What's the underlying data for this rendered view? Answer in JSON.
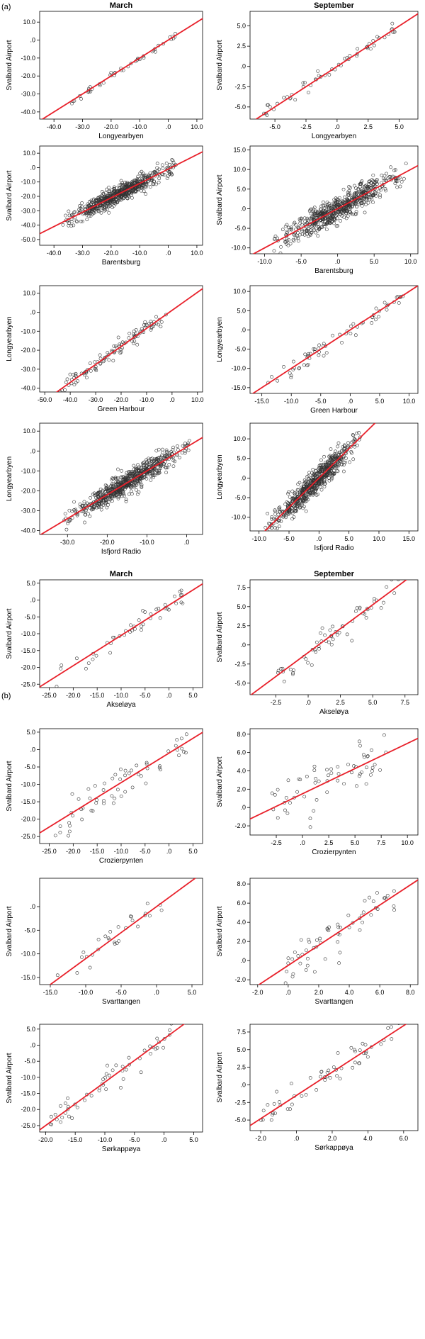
{
  "panel_labels": [
    "(a)",
    "(b)"
  ],
  "colors": {
    "fit_line": "#e8202a",
    "points": "#333333",
    "axis": "#000000"
  },
  "chart_data": [
    {
      "type": "scatter",
      "panel": "(a)",
      "title": "March",
      "xlabel": "Longyearbyen",
      "ylabel": "Svalbard Airport",
      "xlim": [
        -45,
        12
      ],
      "ylim": [
        -44,
        16
      ],
      "xticks": [
        -40,
        -30,
        -20,
        -10,
        0,
        10
      ],
      "xticklabels": [
        "-40.0",
        "-30.0",
        "-20.0",
        "-10.0",
        ".0",
        "10.0"
      ],
      "yticks": [
        -40,
        -30,
        -20,
        -10,
        0,
        10
      ],
      "yticklabels": [
        "-40.0",
        "-30.0",
        "-20.0",
        "-10.0",
        ".0",
        "10.0"
      ],
      "n_points": 45,
      "x_range": [
        -34,
        3
      ],
      "fit": {
        "slope": 1.0,
        "intercept": 0
      },
      "spread": 0.9
    },
    {
      "type": "scatter",
      "panel": "(a)",
      "title": "September",
      "xlabel": "Longyearbyen",
      "ylabel": "Svalbard Airport",
      "xlim": [
        -7,
        6.5
      ],
      "ylim": [
        -6.5,
        6.8
      ],
      "xticks": [
        -5,
        -2.5,
        0,
        2.5,
        5
      ],
      "xticklabels": [
        "-5.0",
        "-2.5",
        ".0",
        "2.5",
        "5.0"
      ],
      "yticks": [
        -5,
        -2.5,
        0,
        2.5,
        5
      ],
      "yticklabels": [
        "-5.0",
        "-2.5",
        ".0",
        "2.5",
        "5.0"
      ],
      "n_points": 55,
      "x_range": [
        -6,
        5
      ],
      "fit": {
        "slope": 1.0,
        "intercept": 0
      },
      "spread": 0.4
    },
    {
      "type": "scatter",
      "panel": "(a)",
      "title": "",
      "xlabel": "Barentsburg",
      "ylabel": "Svalbard Airport",
      "xlim": [
        -45,
        12
      ],
      "ylim": [
        -54,
        15
      ],
      "xticks": [
        -40,
        -30,
        -20,
        -10,
        0,
        10
      ],
      "xticklabels": [
        "-40.0",
        "-30.0",
        "-20.0",
        "-10.0",
        ".0",
        "10.0"
      ],
      "yticks": [
        -50,
        -40,
        -30,
        -20,
        -10,
        0,
        10
      ],
      "yticklabels": [
        "-50.0",
        "-40.0",
        "-30.0",
        "-20.0",
        "-10.0",
        ".0",
        "10.0"
      ],
      "n_points": 650,
      "x_range": [
        -37,
        3
      ],
      "fit": {
        "slope": 1.0,
        "intercept": -1
      },
      "spread": 3.0
    },
    {
      "type": "scatter",
      "panel": "(a)",
      "title": "",
      "xlabel": "Barentsburg",
      "ylabel": "Svalbard Airport",
      "xlim": [
        -12,
        11
      ],
      "ylim": [
        -11.5,
        16
      ],
      "xticks": [
        -10,
        -5,
        0,
        5,
        10
      ],
      "xticklabels": [
        "-10.0",
        "-5.0",
        ".0",
        "5.0",
        "10.0"
      ],
      "yticks": [
        -10,
        -5,
        0,
        5,
        10,
        15
      ],
      "yticklabels": [
        "-10.0",
        "-5.0",
        ".0",
        "5.0",
        "10.0",
        "15.0"
      ],
      "n_points": 650,
      "x_range": [
        -9,
        9.5
      ],
      "fit": {
        "slope": 1.0,
        "intercept": 0
      },
      "spread": 1.6
    },
    {
      "type": "scatter",
      "panel": "(a)",
      "title": "",
      "xlabel": "Green Harbour",
      "ylabel": "Longyearbyen",
      "xlim": [
        -52,
        12
      ],
      "ylim": [
        -42,
        14
      ],
      "xticks": [
        -50,
        -40,
        -30,
        -20,
        -10,
        0,
        10
      ],
      "xticklabels": [
        "-50.0",
        "-40.0",
        "-30.0",
        "-20.0",
        "-10.0",
        ".0",
        "10.0"
      ],
      "yticks": [
        -40,
        -30,
        -20,
        -10,
        0,
        10
      ],
      "yticklabels": [
        "-40.0",
        "-30.0",
        "-20.0",
        "-10.0",
        ".0",
        "10.0"
      ],
      "n_points": 110,
      "x_range": [
        -45,
        -1
      ],
      "fit": {
        "slope": 0.95,
        "intercept": 1
      },
      "spread": 2.0
    },
    {
      "type": "scatter",
      "panel": "(a)",
      "title": "",
      "xlabel": "Green Harbour",
      "ylabel": "Longyearbyen",
      "xlim": [
        -17,
        11.5
      ],
      "ylim": [
        -16.5,
        11.5
      ],
      "xticks": [
        -15,
        -10,
        -5,
        0,
        5,
        10
      ],
      "xticklabels": [
        "-15.0",
        "-10.0",
        "-5.0",
        ".0",
        "5.0",
        "10.0"
      ],
      "yticks": [
        -15,
        -10,
        -5,
        0,
        5,
        10
      ],
      "yticklabels": [
        "-15.0",
        "-10.0",
        "-5.0",
        ".0",
        "5.0",
        "10.0"
      ],
      "n_points": 65,
      "x_range": [
        -14,
        9
      ],
      "fit": {
        "slope": 1.0,
        "intercept": 0
      },
      "spread": 1.0
    },
    {
      "type": "scatter",
      "panel": "(a)",
      "title": "",
      "xlabel": "Isfjord Radio",
      "ylabel": "Longyearbyen",
      "xlim": [
        -37,
        4
      ],
      "ylim": [
        -42,
        14
      ],
      "xticks": [
        -30,
        -20,
        -10,
        0
      ],
      "xticklabels": [
        "-30.0",
        "-20.0",
        "-10.0",
        ".0"
      ],
      "yticks": [
        -40,
        -30,
        -20,
        -10,
        0,
        10
      ],
      "yticklabels": [
        "-40.0",
        "-30.0",
        "-20.0",
        "-10.0",
        ".0",
        "10.0"
      ],
      "n_points": 700,
      "x_range": [
        -31,
        1
      ],
      "fit": {
        "slope": 1.2,
        "intercept": 2
      },
      "spread": 2.5
    },
    {
      "type": "scatter",
      "panel": "(a)",
      "title": "",
      "xlabel": "Isfjord Radio",
      "ylabel": "Longyearbyen",
      "xlim": [
        -11.5,
        16.5
      ],
      "ylim": [
        -13.5,
        14
      ],
      "xticks": [
        -10,
        -5,
        0,
        5,
        10,
        15
      ],
      "xticklabels": [
        "-10.0",
        "-5.0",
        ".0",
        "5.0",
        "10.0",
        "15.0"
      ],
      "yticks": [
        -10,
        -5,
        0,
        5,
        10
      ],
      "yticklabels": [
        "-10.0",
        "-5.0",
        ".0",
        "5.0",
        "10.0"
      ],
      "n_points": 650,
      "x_range": [
        -9,
        7
      ],
      "fit": {
        "slope": 1.5,
        "intercept": 0
      },
      "spread": 1.5
    },
    {
      "type": "scatter",
      "panel": "(b)",
      "title": "March",
      "xlabel": "Akseløya",
      "ylabel": "Svalbard Airport",
      "xlim": [
        -27,
        7
      ],
      "ylim": [
        -26,
        6
      ],
      "xticks": [
        -25,
        -20,
        -15,
        -10,
        -5,
        0,
        5
      ],
      "xticklabels": [
        "-25.0",
        "-20.0",
        "-15.0",
        "-10.0",
        "-5.0",
        ".0",
        "5.0"
      ],
      "yticks": [
        -25,
        -20,
        -15,
        -10,
        -5,
        0,
        5
      ],
      "yticklabels": [
        "-25.0",
        "-20.0",
        "-15.0",
        "-10.0",
        "-5.0",
        ".0",
        "5.0"
      ],
      "n_points": 45,
      "x_range": [
        -24,
        3
      ],
      "fit": {
        "slope": 0.9,
        "intercept": -1.5
      },
      "spread": 1.8
    },
    {
      "type": "scatter",
      "panel": "(b)",
      "title": "September",
      "xlabel": "Akseløya",
      "ylabel": "Svalbard Airport",
      "xlim": [
        -4.5,
        8.5
      ],
      "ylim": [
        -6.5,
        8.5
      ],
      "xticks": [
        -2.5,
        0,
        2.5,
        5,
        7.5
      ],
      "xticklabels": [
        "-2.5",
        ".0",
        "2.5",
        "5.0",
        "7.5"
      ],
      "yticks": [
        -5,
        -2.5,
        0,
        2.5,
        5,
        7.5
      ],
      "yticklabels": [
        "-5.0",
        "-2.5",
        ".0",
        "2.5",
        "5.0",
        "7.5"
      ],
      "n_points": 60,
      "x_range": [
        -2.5,
        7
      ],
      "fit": {
        "slope": 1.25,
        "intercept": -1
      },
      "spread": 0.8
    },
    {
      "type": "scatter",
      "panel": "(b)",
      "title": "",
      "xlabel": "Crozierpynten",
      "ylabel": "Svalbard Airport",
      "xlim": [
        -27,
        7
      ],
      "ylim": [
        -27,
        6
      ],
      "xticks": [
        -25,
        -20,
        -15,
        -10,
        -5,
        0,
        5
      ],
      "xticklabels": [
        "-25.0",
        "-20.0",
        "-15.0",
        "-10.0",
        "-5.0",
        ".0",
        "5.0"
      ],
      "yticks": [
        -25,
        -20,
        -15,
        -10,
        -5,
        0,
        5
      ],
      "yticklabels": [
        "-25.0",
        "-20.0",
        "-15.0",
        "-10.0",
        "-5.0",
        ".0",
        "5.0"
      ],
      "n_points": 60,
      "x_range": [
        -24,
        4
      ],
      "fit": {
        "slope": 0.85,
        "intercept": -1
      },
      "spread": 2.5
    },
    {
      "type": "scatter",
      "panel": "(b)",
      "title": "",
      "xlabel": "Crozierpynten",
      "ylabel": "Svalbard Airport",
      "xlim": [
        -5,
        11
      ],
      "ylim": [
        -3,
        8.6
      ],
      "xticks": [
        -2.5,
        0,
        2.5,
        5,
        7.5,
        10
      ],
      "xticklabels": [
        "-2.5",
        ".0",
        "2.5",
        "5.0",
        "7.5",
        "10.0"
      ],
      "yticks": [
        -2,
        0,
        2,
        4,
        6,
        8
      ],
      "yticklabels": [
        "-2.0",
        ".0",
        "2.0",
        "4.0",
        "6.0",
        "8.0"
      ],
      "n_points": 60,
      "x_range": [
        -3,
        8
      ],
      "fit": {
        "slope": 0.55,
        "intercept": 1.5
      },
      "spread": 1.3
    },
    {
      "type": "scatter",
      "panel": "(b)",
      "title": "",
      "xlabel": "Svarttangen",
      "ylabel": "Svalbard Airport",
      "xlim": [
        -16.5,
        6.5
      ],
      "ylim": [
        -16.5,
        6
      ],
      "xticks": [
        -15,
        -10,
        -5,
        0,
        5
      ],
      "xticklabels": [
        "-15.0",
        "-10.0",
        "-5.0",
        ".0",
        "5.0"
      ],
      "yticks": [
        -15,
        -10,
        -5,
        0
      ],
      "yticklabels": [
        "-15.0",
        "-10.0",
        "-5.0",
        ".0"
      ],
      "n_points": 30,
      "x_range": [
        -14,
        1
      ],
      "fit": {
        "slope": 1.1,
        "intercept": 0
      },
      "spread": 1.2
    },
    {
      "type": "scatter",
      "panel": "(b)",
      "title": "",
      "xlabel": "Svarttangen",
      "ylabel": "Svalbard Airport",
      "xlim": [
        -2.5,
        8.5
      ],
      "ylim": [
        -2.5,
        8.6
      ],
      "xticks": [
        -2,
        0,
        2,
        4,
        6,
        8
      ],
      "xticklabels": [
        "-2.0",
        ".0",
        "2.0",
        "4.0",
        "6.0",
        "8.0"
      ],
      "yticks": [
        -2,
        0,
        2,
        4,
        6,
        8
      ],
      "yticklabels": [
        "-2.0",
        ".0",
        "2.0",
        "4.0",
        "6.0",
        "8.0"
      ],
      "n_points": 60,
      "x_range": [
        -0.5,
        7
      ],
      "fit": {
        "slope": 1.05,
        "intercept": -0.5
      },
      "spread": 1.2
    },
    {
      "type": "scatter",
      "panel": "(b)",
      "title": "",
      "xlabel": "Sørkappøya",
      "ylabel": "Svalbard Airport",
      "xlim": [
        -21,
        6.5
      ],
      "ylim": [
        -27,
        6.5
      ],
      "xticks": [
        -20,
        -15,
        -10,
        -5,
        0,
        5
      ],
      "xticklabels": [
        "-20.0",
        "-15.0",
        "-10.0",
        "-5.0",
        ".0",
        "5.0"
      ],
      "yticks": [
        -25,
        -20,
        -15,
        -10,
        -5,
        0,
        5
      ],
      "yticklabels": [
        "-25.0",
        "-20.0",
        "-15.0",
        "-10.0",
        "-5.0",
        ".0",
        "5.0"
      ],
      "n_points": 55,
      "x_range": [
        -20,
        2
      ],
      "fit": {
        "slope": 1.35,
        "intercept": 2
      },
      "spread": 1.8
    },
    {
      "type": "scatter",
      "panel": "(b)",
      "title": "",
      "xlabel": "Sørkappøya",
      "ylabel": "Svalbard Airport",
      "xlim": [
        -2.6,
        6.8
      ],
      "ylim": [
        -6.5,
        8.6
      ],
      "xticks": [
        -2,
        0,
        2,
        4,
        6
      ],
      "xticklabels": [
        "-2.0",
        ".0",
        "2.0",
        "4.0",
        "6.0"
      ],
      "yticks": [
        -5,
        -2.5,
        0,
        2.5,
        5,
        7.5
      ],
      "yticklabels": [
        "-5.0",
        "-2.5",
        ".0",
        "2.5",
        "5.0",
        "7.5"
      ],
      "n_points": 60,
      "x_range": [
        -2,
        5.8
      ],
      "fit": {
        "slope": 1.65,
        "intercept": -1.5
      },
      "spread": 0.9
    }
  ]
}
